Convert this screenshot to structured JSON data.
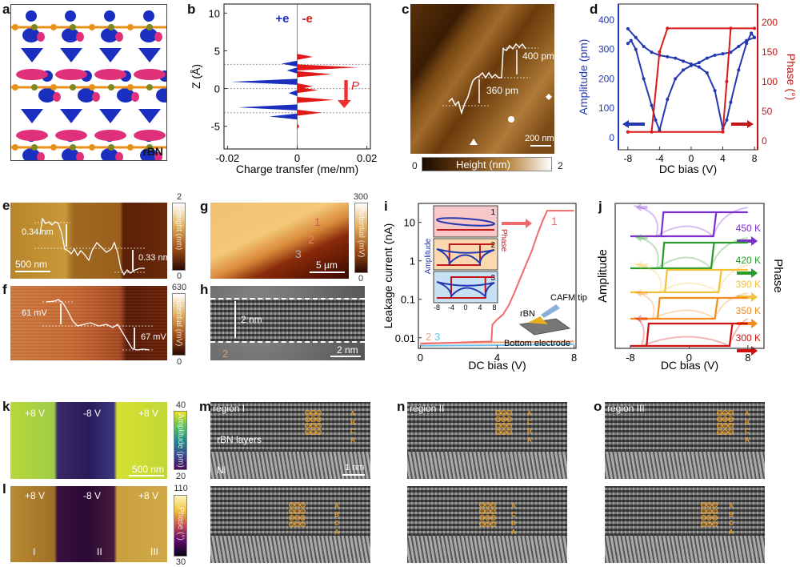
{
  "panels": {
    "a": {
      "label": "a",
      "tag": "rBN"
    },
    "b": {
      "label": "b",
      "plus_e": "+e",
      "minus_e": "-e",
      "p_label": "P"
    },
    "c": {
      "label": "c",
      "step_upper": "400 pm",
      "step_lower": "360 pm",
      "scalebar": "200 nm",
      "colorbar": {
        "min": "0",
        "max": "2",
        "label": "Height (nm)"
      }
    },
    "d": {
      "label": "d"
    },
    "e": {
      "label": "e",
      "step_left": "0.34 nm",
      "step_right": "0.33 nm",
      "scalebar": "500 nm",
      "colorbar": {
        "min": "0",
        "max": "2",
        "label": "Height (nm)"
      }
    },
    "f": {
      "label": "f",
      "step_left": "61 mV",
      "step_right": "67 mV",
      "colorbar": {
        "min": "0",
        "max": "630",
        "label": "Potential (mV)"
      }
    },
    "g": {
      "label": "g",
      "points": [
        "1",
        "2",
        "3"
      ],
      "scalebar": "5 µm",
      "colorbar": {
        "min": "0",
        "max": "300",
        "label": "Potential (mV)"
      }
    },
    "h": {
      "label": "h",
      "thickness": "2 nm",
      "point": "2",
      "scalebar": "2 nm"
    },
    "i": {
      "label": "i",
      "curve_labels": [
        "1",
        "2",
        "3"
      ],
      "insets": [
        {
          "index": "1"
        },
        {
          "index": "2"
        },
        {
          "index": "3"
        }
      ],
      "inset_ylabel_left": "Amplitude",
      "inset_ylabel_right": "Phase",
      "inset_xticks": [
        "-8",
        "-4",
        "0",
        "4",
        "8"
      ],
      "schematic": {
        "tip": "CAFM tip",
        "film": "rBN",
        "electrode": "Bottom electrode"
      }
    },
    "j": {
      "label": "j"
    },
    "k": {
      "label": "k",
      "regions": [
        "+8 V",
        "-8 V",
        "+8 V"
      ],
      "scalebar": "500 nm",
      "colorbar": {
        "min": "20",
        "max": "40",
        "label": "Amplitude (pm)"
      }
    },
    "l": {
      "label": "l",
      "regions": [
        "+8 V",
        "-8 V",
        "+8 V"
      ],
      "region_ids": [
        "I",
        "II",
        "III"
      ],
      "colorbar": {
        "min": "30",
        "max": "110",
        "label": "Phase (°)"
      }
    },
    "m": {
      "label": "m",
      "title": "region I",
      "layer_label": "rBN layers",
      "substrate": "Ni",
      "scalebar": "1 nm",
      "stacking_top": [
        "A",
        "B",
        "C",
        "A"
      ],
      "stacking_bottom": [
        "A",
        "B",
        "C",
        "A"
      ]
    },
    "n": {
      "label": "n",
      "title": "region II",
      "stacking_top": [
        "A",
        "C",
        "B",
        "A"
      ],
      "stacking_bottom": [
        "A",
        "C",
        "B",
        "A"
      ]
    },
    "o": {
      "label": "o",
      "title": "region III",
      "stacking_top": [
        "A",
        "B",
        "C",
        "A"
      ],
      "stacking_bottom": [
        "A",
        "B",
        "C",
        "A"
      ]
    }
  },
  "colors": {
    "blue": "#1a2fc0",
    "red": "#d81a1a",
    "pink": "#e0307a",
    "atom_orange": "#e8901a",
    "hrtem_orange": "#e8a030"
  },
  "chart_data": [
    {
      "id": "b",
      "type": "area",
      "xlabel": "Charge transfer (me/nm)",
      "ylabel": "Z (Å)",
      "xlim": [
        -0.021,
        0.021
      ],
      "ylim": [
        -8,
        11.2
      ],
      "xticks": [
        "-0.02",
        "0",
        "0.02"
      ],
      "xtick_values": [
        -0.02,
        0,
        0.02
      ],
      "yticks": [
        "10",
        "5",
        "0",
        "-5"
      ],
      "ytick_values": [
        10,
        5,
        0,
        -5
      ],
      "reference_lines_z": [
        3.2,
        0,
        -3.2
      ],
      "series": [
        {
          "name": "+e",
          "color": "#1a2fc0",
          "peaks": [
            {
              "z": 3.3,
              "v": -0.0045
            },
            {
              "z": 2.4,
              "v": -0.003
            },
            {
              "z": 0.9,
              "v": -0.019
            },
            {
              "z": -0.6,
              "v": -0.0025
            },
            {
              "z": -2.5,
              "v": -0.017
            },
            {
              "z": -3.7,
              "v": -0.008
            }
          ]
        },
        {
          "name": "-e",
          "color": "#e01818",
          "peaks": [
            {
              "z": 4.2,
              "v": 0.0045
            },
            {
              "z": 2.8,
              "v": 0.0175
            },
            {
              "z": 1.9,
              "v": 0.01
            },
            {
              "z": 0.3,
              "v": 0.0045
            },
            {
              "z": -0.2,
              "v": 0.006
            },
            {
              "z": -1.5,
              "v": 0.0105
            },
            {
              "z": -3.2,
              "v": 0.007
            },
            {
              "z": -5.0,
              "v": 0.0006
            }
          ]
        }
      ]
    },
    {
      "id": "d",
      "type": "line",
      "xlabel": "DC bias (V)",
      "ylabel": "Amplitude (pm)",
      "y2label": "Phase (°)",
      "xlim": [
        -9.2,
        8.4
      ],
      "ylim": [
        -41,
        454
      ],
      "y2lim": [
        -15,
        231
      ],
      "xticks": [
        "-8",
        "-4",
        "0",
        "4",
        "8"
      ],
      "xtick_values": [
        -8,
        -4,
        0,
        4,
        8
      ],
      "yticks": [
        "0",
        "100",
        "200",
        "300",
        "400"
      ],
      "ytick_values": [
        0,
        100,
        200,
        300,
        400
      ],
      "y2ticks": [
        "0",
        "50",
        "100",
        "150",
        "200"
      ],
      "y2tick_values": [
        0,
        50,
        100,
        150,
        200
      ],
      "series": [
        {
          "name": "Amplitude",
          "axis": "left",
          "color": "#2238b0",
          "branches": [
            {
              "x": [
                -8,
                -7,
                -6,
                -5,
                -4,
                -3,
                -2,
                -1,
                0,
                1,
                2,
                3,
                4,
                4.5,
                5,
                6,
                7,
                7.6,
                8
              ],
              "y": [
                370,
                340,
                310,
                290,
                280,
                275,
                270,
                260,
                250,
                240,
                220,
                160,
                30,
                60,
                120,
                230,
                320,
                355,
                340
              ]
            },
            {
              "x": [
                8,
                7,
                6,
                5,
                4,
                3,
                2,
                1,
                0,
                -1,
                -2,
                -3,
                -4,
                -4.5,
                -5,
                -6,
                -7,
                -7.6,
                -8
              ],
              "y": [
                340,
                330,
                310,
                290,
                285,
                280,
                270,
                255,
                245,
                230,
                200,
                130,
                25,
                60,
                110,
                200,
                300,
                330,
                320
              ]
            }
          ]
        },
        {
          "name": "Phase",
          "axis": "right",
          "color": "#d81a1a",
          "branches": [
            {
              "x": [
                -8,
                4,
                4.5,
                5,
                8,
                -3,
                -4,
                -5,
                -8
              ],
              "y": [
                15,
                15,
                100,
                190,
                190,
                190,
                150,
                15,
                15
              ]
            }
          ]
        }
      ]
    },
    {
      "id": "i",
      "type": "line",
      "yscale": "log",
      "xlabel": "DC bias (V)",
      "ylabel": "Leakage current (nA)",
      "xlim": [
        -0.1,
        8.1
      ],
      "ylim": [
        0.0053,
        31
      ],
      "xticks": [
        "0",
        "4",
        "8"
      ],
      "xtick_values": [
        0,
        4,
        8
      ],
      "yticks": [
        "10",
        "1",
        "0.1",
        "0.01"
      ],
      "ytick_values": [
        10,
        1,
        0.1,
        0.01
      ],
      "series": [
        {
          "name": "1",
          "color": "#f06a6a",
          "x": [
            0,
            3.7,
            3.75,
            4,
            4.3,
            4.6,
            4.9,
            5.2,
            5.5,
            5.8,
            6.1,
            6.4,
            6.6,
            7,
            8
          ],
          "y": [
            0.007,
            0.008,
            0.022,
            0.03,
            0.04,
            0.07,
            0.15,
            0.35,
            0.8,
            1.8,
            5,
            12,
            20,
            20,
            20
          ]
        },
        {
          "name": "2",
          "color": "#f0a070",
          "x": [
            0,
            2,
            4,
            6,
            8
          ],
          "y": [
            0.0072,
            0.0074,
            0.0076,
            0.0078,
            0.008
          ]
        },
        {
          "name": "3",
          "color": "#6ec0ea",
          "x": [
            0,
            2,
            4,
            6,
            8
          ],
          "y": [
            0.0062,
            0.0063,
            0.0064,
            0.0066,
            0.0068
          ]
        }
      ]
    },
    {
      "id": "j",
      "type": "line",
      "xlabel": "DC bias (V)",
      "ylabel": "Amplitude",
      "y2label": "Phase",
      "xlim": [
        -10.07,
        10.2
      ],
      "xticks": [
        "-8",
        "0",
        "8"
      ],
      "xtick_values": [
        -8,
        0,
        8
      ],
      "series": [
        {
          "name": "450 K",
          "color": "#7b2fd0",
          "coercive_v": [
            -3.5,
            3.3
          ]
        },
        {
          "name": "420 K",
          "color": "#2a9a2a",
          "coercive_v": [
            -3.4,
            3.0
          ]
        },
        {
          "name": "390 K",
          "color": "#f2c23a",
          "coercive_v": [
            -3.0,
            4.0
          ]
        },
        {
          "name": "350 K",
          "color": "#f28c1f",
          "coercive_v": [
            -4.0,
            3.5
          ]
        },
        {
          "name": "300 K",
          "color": "#d01010",
          "coercive_v": [
            -5.5,
            5.5
          ]
        }
      ]
    }
  ]
}
